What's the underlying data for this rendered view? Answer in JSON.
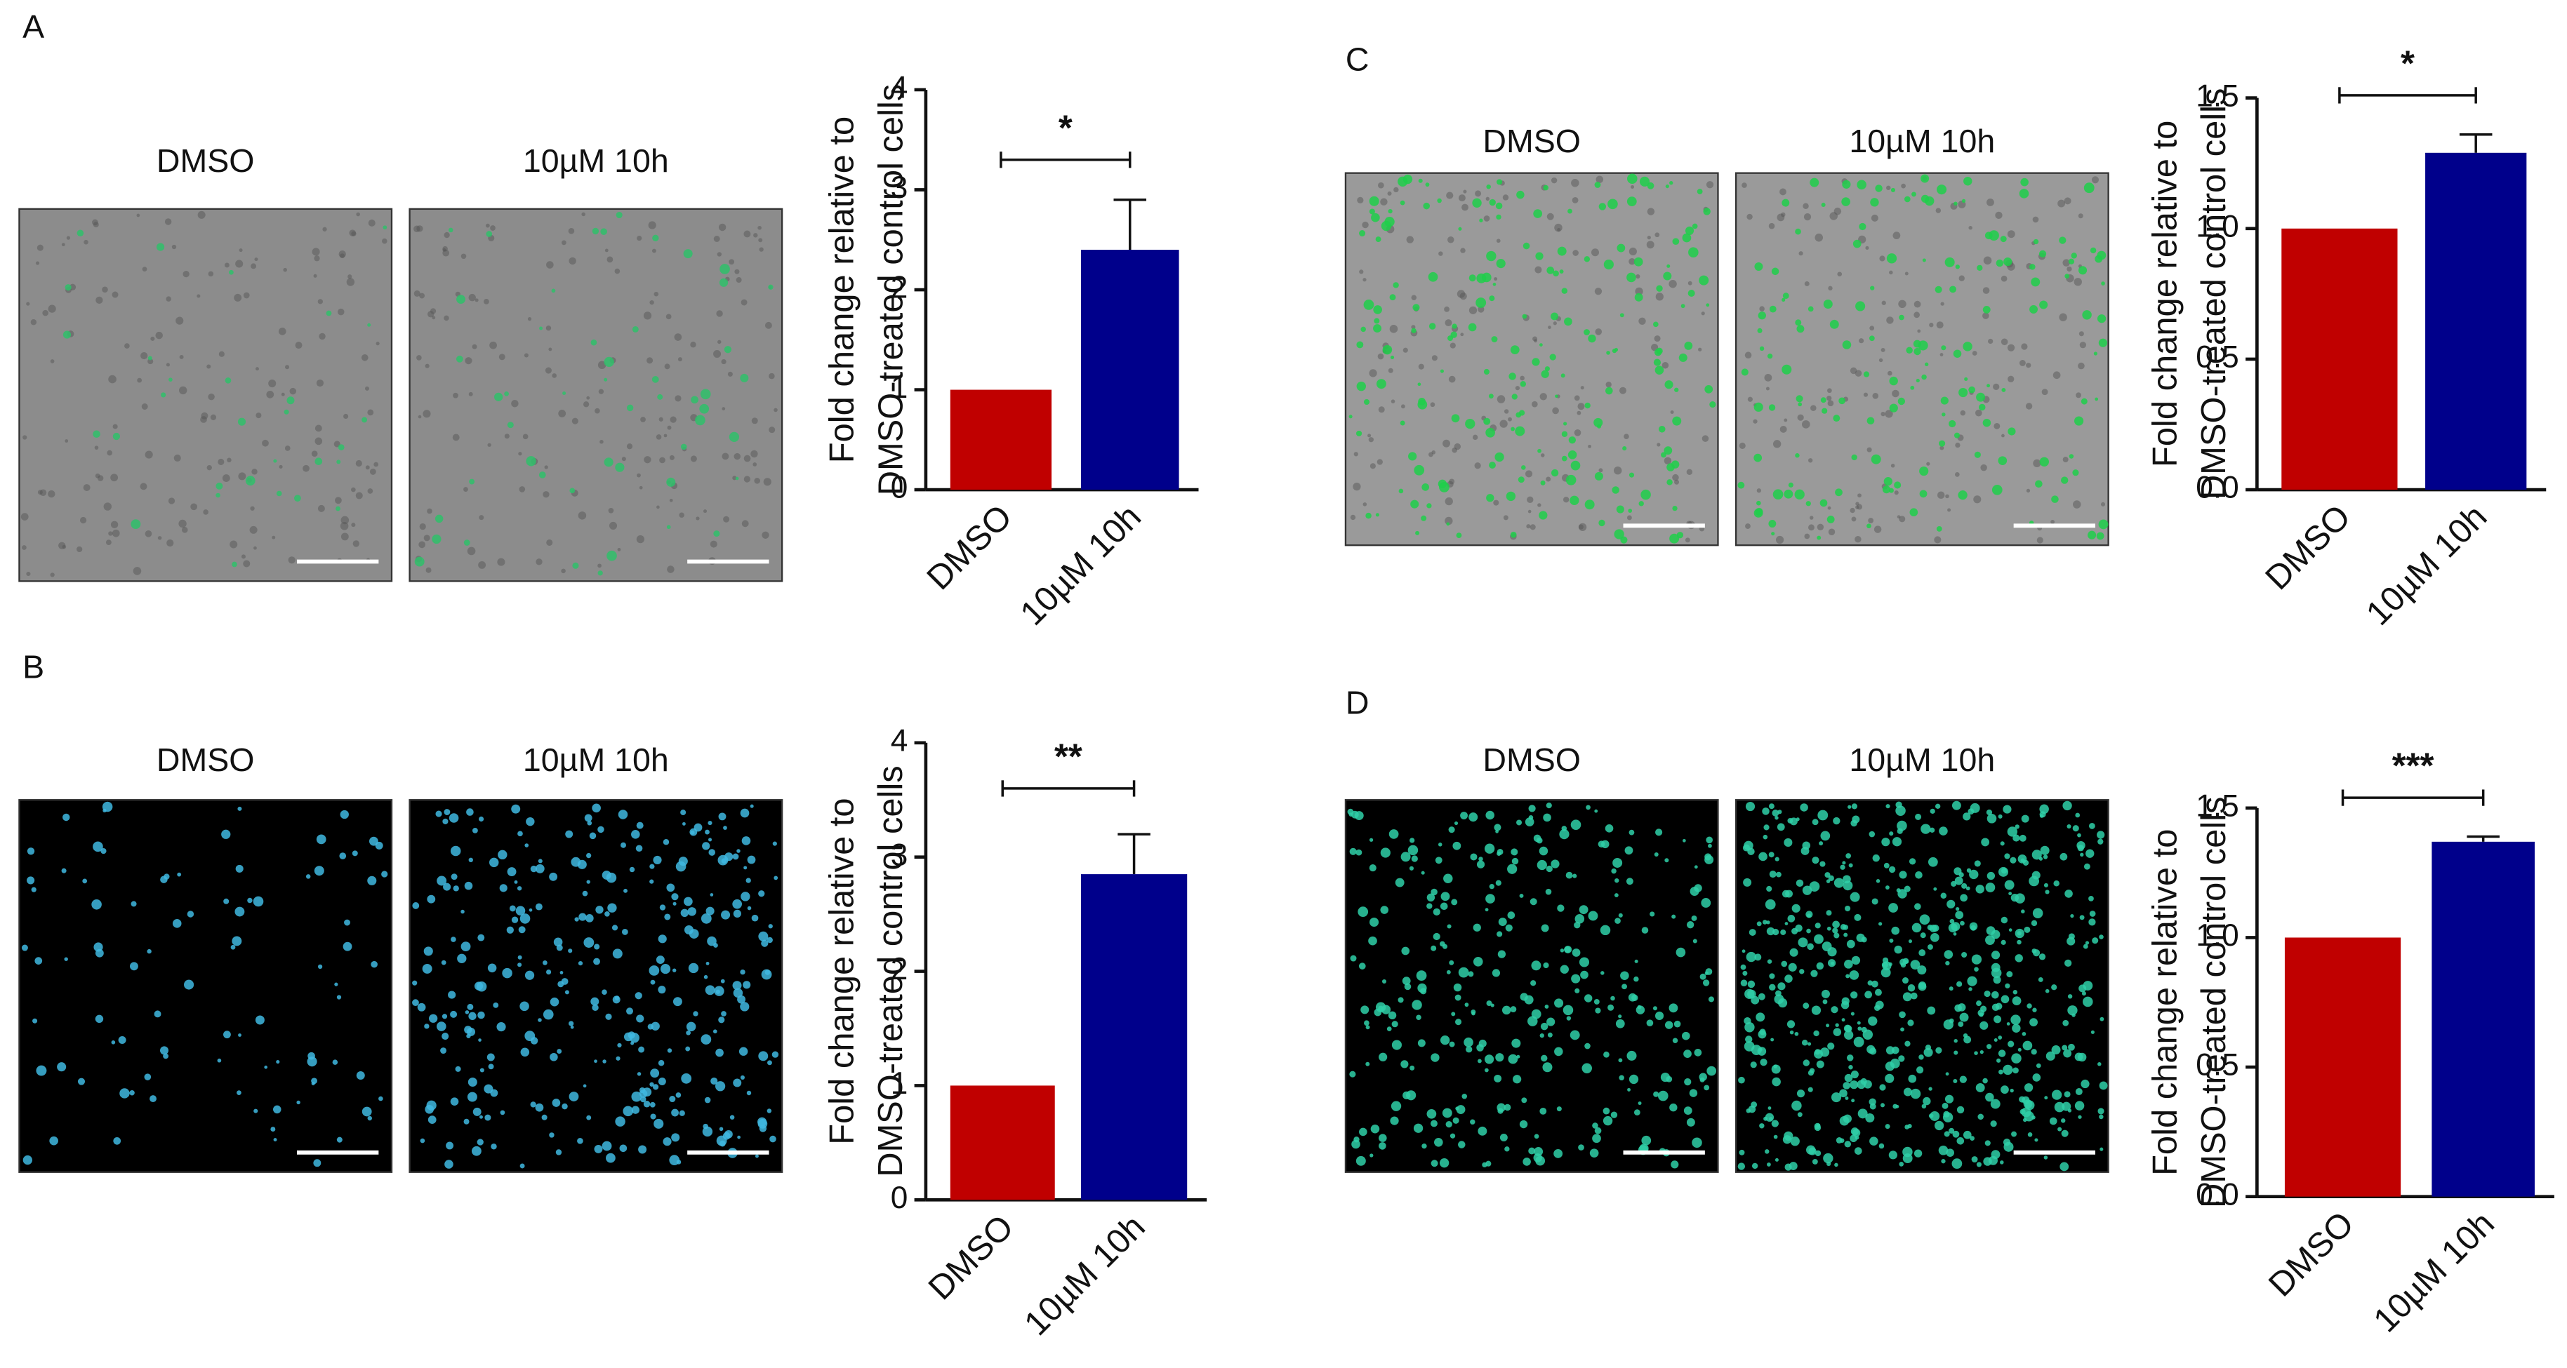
{
  "chart_data": [
    {
      "type": "bar",
      "panel": "A",
      "image_labels": [
        "DMSO",
        "10µM 10h"
      ],
      "ylabel": [
        "Fold change relative to",
        "DMSO-treated control cells"
      ],
      "categories": [
        "DMSO",
        "10µM 10h"
      ],
      "values": [
        1.0,
        2.4
      ],
      "errors": [
        null,
        0.5
      ],
      "colors": [
        "#c00000",
        "#00008b"
      ],
      "annotation": "*",
      "ylim": [
        0,
        4
      ],
      "yticks": [
        0,
        1,
        2,
        3,
        4
      ]
    },
    {
      "type": "bar",
      "panel": "B",
      "image_labels": [
        "DMSO",
        "10µM 10h"
      ],
      "ylabel": [
        "Fold change relative to",
        "DMSO-treated control cells"
      ],
      "categories": [
        "DMSO",
        "10µM 10h"
      ],
      "values": [
        1.0,
        2.85
      ],
      "errors": [
        null,
        0.35
      ],
      "colors": [
        "#c00000",
        "#00008b"
      ],
      "annotation": "**",
      "ylim": [
        0,
        4
      ],
      "yticks": [
        0,
        1,
        2,
        3,
        4
      ]
    },
    {
      "type": "bar",
      "panel": "C",
      "image_labels": [
        "DMSO",
        "10µM 10h"
      ],
      "ylabel": [
        "Fold change relative to",
        "DMSO-treated control cells"
      ],
      "categories": [
        "DMSO",
        "10µM 10h"
      ],
      "values": [
        1.0,
        1.29
      ],
      "errors": [
        null,
        0.07
      ],
      "colors": [
        "#c00000",
        "#00008b"
      ],
      "annotation": "*",
      "ylim": [
        0,
        1.5
      ],
      "yticks": [
        {
          "value": 0,
          "label": "0.0"
        },
        0.5,
        {
          "value": 1,
          "label": "1.0"
        },
        1.5
      ]
    },
    {
      "type": "bar",
      "panel": "D",
      "image_labels": [
        "DMSO",
        "10µM 10h"
      ],
      "ylabel": [
        "Fold change relative to",
        "DMSO-treated control cells"
      ],
      "categories": [
        "DMSO",
        "10µM 10h"
      ],
      "values": [
        1.0,
        1.37
      ],
      "errors": [
        null,
        0.02
      ],
      "colors": [
        "#c00000",
        "#00008b"
      ],
      "annotation": "***",
      "ylim": [
        0,
        1.5
      ],
      "yticks": [
        {
          "value": 0,
          "label": "0.0"
        },
        0.5,
        {
          "value": 1,
          "label": "1.0"
        },
        1.5
      ]
    }
  ]
}
